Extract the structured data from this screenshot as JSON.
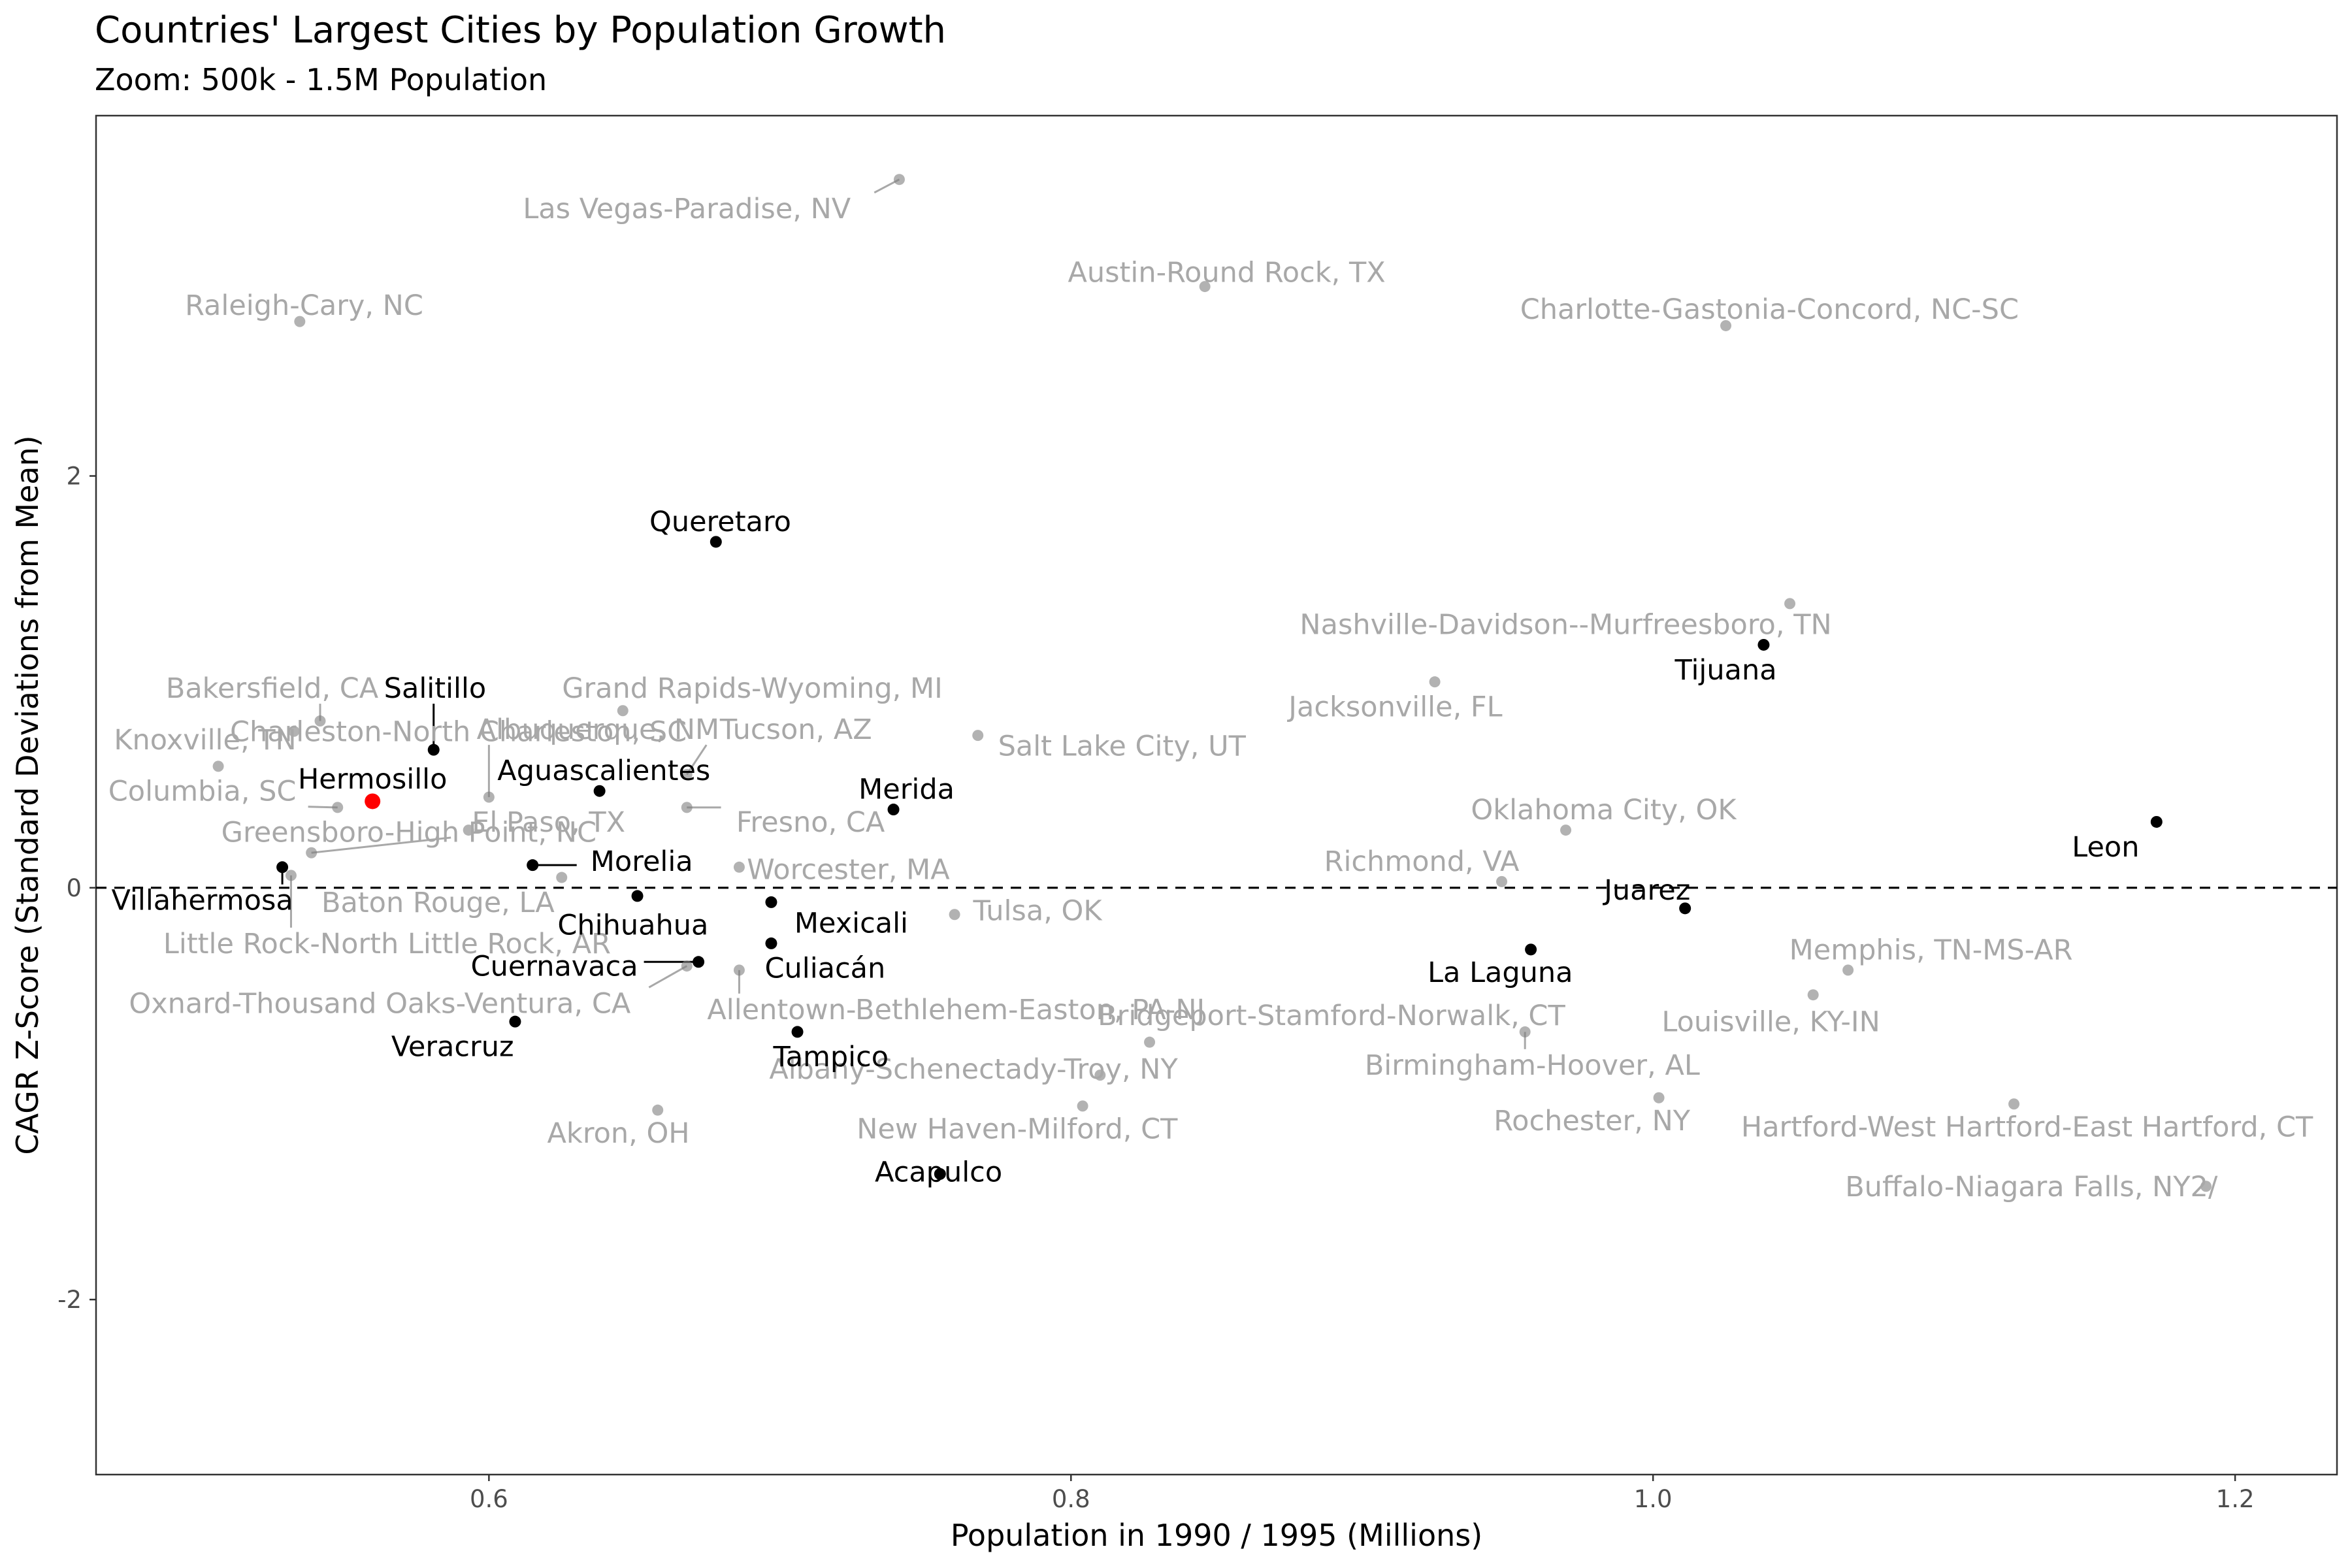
{
  "chart_data": {
    "type": "scatter",
    "title": "Countries' Largest Cities by Population Growth",
    "subtitle": "Zoom: 500k - 1.5M Population",
    "xlabel": "Population in 1990 / 1995 (Millions)",
    "ylabel": "CAGR Z-Score (Standard Deviations from Mean)",
    "xlim": [
      0.465,
      1.235
    ],
    "ylim": [
      -2.85,
      3.75
    ],
    "x_ticks": [
      0.6,
      0.8,
      1.0,
      1.2
    ],
    "x_tick_labels": [
      "0.6",
      "0.8",
      "1.0",
      "1.2"
    ],
    "y_ticks": [
      -2,
      0,
      2
    ],
    "y_tick_labels": [
      "-2",
      "0",
      "2"
    ],
    "grid": false,
    "reference_line": {
      "y": 0,
      "style": "dashed"
    },
    "colors": {
      "us": "#7f7f7f",
      "us_label": "#a8a8a8",
      "mexico": "#000000",
      "highlight": "#ff0000"
    },
    "points": [
      {
        "name": "Las Vegas-Paradise, NV",
        "x": 0.741,
        "y": 3.44,
        "group": "us",
        "lx": 0.668,
        "ly": 3.3
      },
      {
        "name": "Austin-Round Rock, TX",
        "x": 0.846,
        "y": 2.92,
        "group": "us",
        "lx": 0.8535,
        "ly": 2.99
      },
      {
        "name": "Raleigh-Cary, NC",
        "x": 0.535,
        "y": 2.75,
        "group": "us",
        "lx": 0.5365,
        "ly": 2.83
      },
      {
        "name": "Charlotte-Gastonia-Concord, NC-SC",
        "x": 1.025,
        "y": 2.73,
        "group": "us",
        "lx": 1.04,
        "ly": 2.81
      },
      {
        "name": "Nashville-Davidson--Murfreesboro, TN",
        "x": 1.047,
        "y": 1.38,
        "group": "us",
        "lx": 0.97,
        "ly": 1.28
      },
      {
        "name": "Jacksonville, FL",
        "x": 0.925,
        "y": 1.0,
        "group": "us",
        "lx": 0.9115,
        "ly": 0.88
      },
      {
        "name": "Bakersfield, CA",
        "x": 0.542,
        "y": 0.81,
        "group": "us",
        "lx": 0.5255,
        "ly": 0.97
      },
      {
        "name": "Grand Rapids-Wyoming, MI",
        "x": 0.646,
        "y": 0.86,
        "group": "us",
        "lx": 0.6905,
        "ly": 0.97
      },
      {
        "name": "Charleston-North Charleston, SC",
        "x": 0.533,
        "y": 0.76,
        "group": "us",
        "lx": 0.5895,
        "ly": 0.76
      },
      {
        "name": "Albuquerque, NM",
        "x": 0.6,
        "y": 0.44,
        "group": "us",
        "lx": 0.6375,
        "ly": 0.77
      },
      {
        "name": "Tucson, AZ",
        "x": 0.668,
        "y": 0.55,
        "group": "us",
        "lx": 0.7055,
        "ly": 0.77
      },
      {
        "name": "Salt Lake City, UT",
        "x": 0.768,
        "y": 0.74,
        "group": "us",
        "lx": 0.8175,
        "ly": 0.69
      },
      {
        "name": "Knoxville, TN",
        "x": 0.507,
        "y": 0.59,
        "group": "us",
        "lx": 0.5025,
        "ly": 0.72
      },
      {
        "name": "Columbia, SC",
        "x": 0.548,
        "y": 0.39,
        "group": "us",
        "lx": 0.5015,
        "ly": 0.47
      },
      {
        "name": "Fresno, CA",
        "x": 0.668,
        "y": 0.39,
        "group": "us",
        "lx": 0.7105,
        "ly": 0.32
      },
      {
        "name": "Greensboro-High Point, NC",
        "x": 0.593,
        "y": 0.28,
        "group": "us",
        "lx": 0.5725,
        "ly": 0.27
      },
      {
        "name": "El Paso, TX",
        "x": 0.539,
        "y": 0.17,
        "group": "us",
        "lx": 0.6205,
        "ly": 0.32
      },
      {
        "name": "Oklahoma City, OK",
        "x": 0.97,
        "y": 0.28,
        "group": "us",
        "lx": 0.983,
        "ly": 0.38
      },
      {
        "name": "Worcester, MA",
        "x": 0.686,
        "y": 0.1,
        "group": "us",
        "lx": 0.7235,
        "ly": 0.09
      },
      {
        "name": "Richmond, VA",
        "x": 0.948,
        "y": 0.03,
        "group": "us",
        "lx": 0.9205,
        "ly": 0.13
      },
      {
        "name": "Baton Rouge, LA",
        "x": 0.625,
        "y": 0.05,
        "group": "us",
        "lx": 0.5825,
        "ly": -0.07
      },
      {
        "name": "Little Rock-North Little Rock, AR",
        "x": 0.532,
        "y": 0.06,
        "group": "us",
        "lx": 0.565,
        "ly": -0.27
      },
      {
        "name": "Tulsa, OK",
        "x": 0.76,
        "y": -0.13,
        "group": "us",
        "lx": 0.7885,
        "ly": -0.11
      },
      {
        "name": "Memphis, TN-MS-AR",
        "x": 1.067,
        "y": -0.4,
        "group": "us",
        "lx": 1.0955,
        "ly": -0.3
      },
      {
        "name": "Oxnard-Thousand Oaks-Ventura, CA",
        "x": 0.668,
        "y": -0.38,
        "group": "us",
        "lx": 0.5625,
        "ly": -0.56
      },
      {
        "name": "Allentown-Bethlehem-Easton, PA-NJ",
        "x": 0.686,
        "y": -0.4,
        "group": "us",
        "lx": 0.7605,
        "ly": -0.59
      },
      {
        "name": "Bridgeport-Stamford-Norwalk, CT",
        "x": 0.827,
        "y": -0.75,
        "group": "us",
        "lx": 0.8895,
        "ly": -0.62
      },
      {
        "name": "Louisville, KY-IN",
        "x": 1.055,
        "y": -0.52,
        "group": "us",
        "lx": 1.0405,
        "ly": -0.65
      },
      {
        "name": "Birmingham-Hoover, AL",
        "x": 0.956,
        "y": -0.7,
        "group": "us",
        "lx": 0.9585,
        "ly": -0.86
      },
      {
        "name": "Albany-Schenectady-Troy, NY",
        "x": 0.81,
        "y": -0.91,
        "group": "us",
        "lx": 0.7665,
        "ly": -0.88
      },
      {
        "name": "Rochester, NY",
        "x": 1.002,
        "y": -1.02,
        "group": "us",
        "lx": 0.979,
        "ly": -1.13
      },
      {
        "name": "Hartford-West Hartford-East Hartford, CT",
        "x": 1.124,
        "y": -1.05,
        "group": "us",
        "lx": 1.1285,
        "ly": -1.16
      },
      {
        "name": "New Haven-Milford, CT",
        "x": 0.804,
        "y": -1.06,
        "group": "us",
        "lx": 0.7815,
        "ly": -1.17
      },
      {
        "name": "Akron, OH",
        "x": 0.658,
        "y": -1.08,
        "group": "us",
        "lx": 0.6445,
        "ly": -1.19
      },
      {
        "name": "Buffalo-Niagara Falls, NY2/",
        "x": 1.19,
        "y": -1.45,
        "group": "us",
        "lx": 1.13,
        "ly": -1.45
      },
      {
        "name": "Hermosillo",
        "x": 0.56,
        "y": 0.42,
        "group": "highlight",
        "label": ""
      },
      {
        "name": "Queretaro",
        "x": 0.678,
        "y": 1.68,
        "group": "mexico",
        "lx": 0.6795,
        "ly": 1.78
      },
      {
        "name": "Tijuana",
        "x": 1.038,
        "y": 1.18,
        "group": "mexico",
        "lx": 1.025,
        "ly": 1.06
      },
      {
        "name": "Salitillo",
        "x": 0.581,
        "y": 0.67,
        "group": "mexico",
        "lx": 0.5815,
        "ly": 0.97
      },
      {
        "name": "Aguascalientes",
        "x": 0.638,
        "y": 0.47,
        "group": "mexico",
        "lx": 0.6395,
        "ly": 0.57
      },
      {
        "name": "Merida",
        "x": 0.739,
        "y": 0.38,
        "group": "mexico",
        "lx": 0.7435,
        "ly": 0.48
      },
      {
        "name": "Leon",
        "x": 1.173,
        "y": 0.32,
        "group": "mexico",
        "lx": 1.1555,
        "ly": 0.2
      },
      {
        "name": "Morelia",
        "x": 0.615,
        "y": 0.11,
        "group": "mexico",
        "lx": 0.6525,
        "ly": 0.13
      },
      {
        "name": "Villahermosa",
        "x": 0.529,
        "y": 0.1,
        "group": "mexico",
        "lx": 0.5015,
        "ly": -0.06
      },
      {
        "name": "Juarez",
        "x": 1.011,
        "y": -0.1,
        "group": "mexico",
        "lx": 0.998,
        "ly": -0.01
      },
      {
        "name": "Chihuahua",
        "x": 0.651,
        "y": -0.04,
        "group": "mexico",
        "lx": 0.6495,
        "ly": -0.18
      },
      {
        "name": "Mexicali",
        "x": 0.697,
        "y": -0.07,
        "group": "mexico",
        "lx": 0.7245,
        "ly": -0.17
      },
      {
        "name": "La Laguna",
        "x": 0.958,
        "y": -0.3,
        "group": "mexico",
        "lx": 0.9475,
        "ly": -0.41
      },
      {
        "name": "Cuernavaca",
        "x": 0.672,
        "y": -0.36,
        "group": "mexico",
        "lx": 0.6225,
        "ly": -0.38
      },
      {
        "name": "Culiacán",
        "x": 0.697,
        "y": -0.27,
        "group": "mexico",
        "lx": 0.7155,
        "ly": -0.39
      },
      {
        "name": "Veracruz",
        "x": 0.609,
        "y": -0.65,
        "group": "mexico",
        "lx": 0.5875,
        "ly": -0.77
      },
      {
        "name": "Tampico",
        "x": 0.706,
        "y": -0.7,
        "group": "mexico",
        "lx": 0.7175,
        "ly": -0.82
      },
      {
        "name": "Acapulco",
        "x": 0.755,
        "y": -1.39,
        "group": "mexico",
        "lx": 0.7545,
        "ly": -1.38
      }
    ],
    "annotations": [
      {
        "text": "Hermosillo",
        "x": 0.56,
        "y": 0.53,
        "color": "#000000"
      }
    ]
  }
}
